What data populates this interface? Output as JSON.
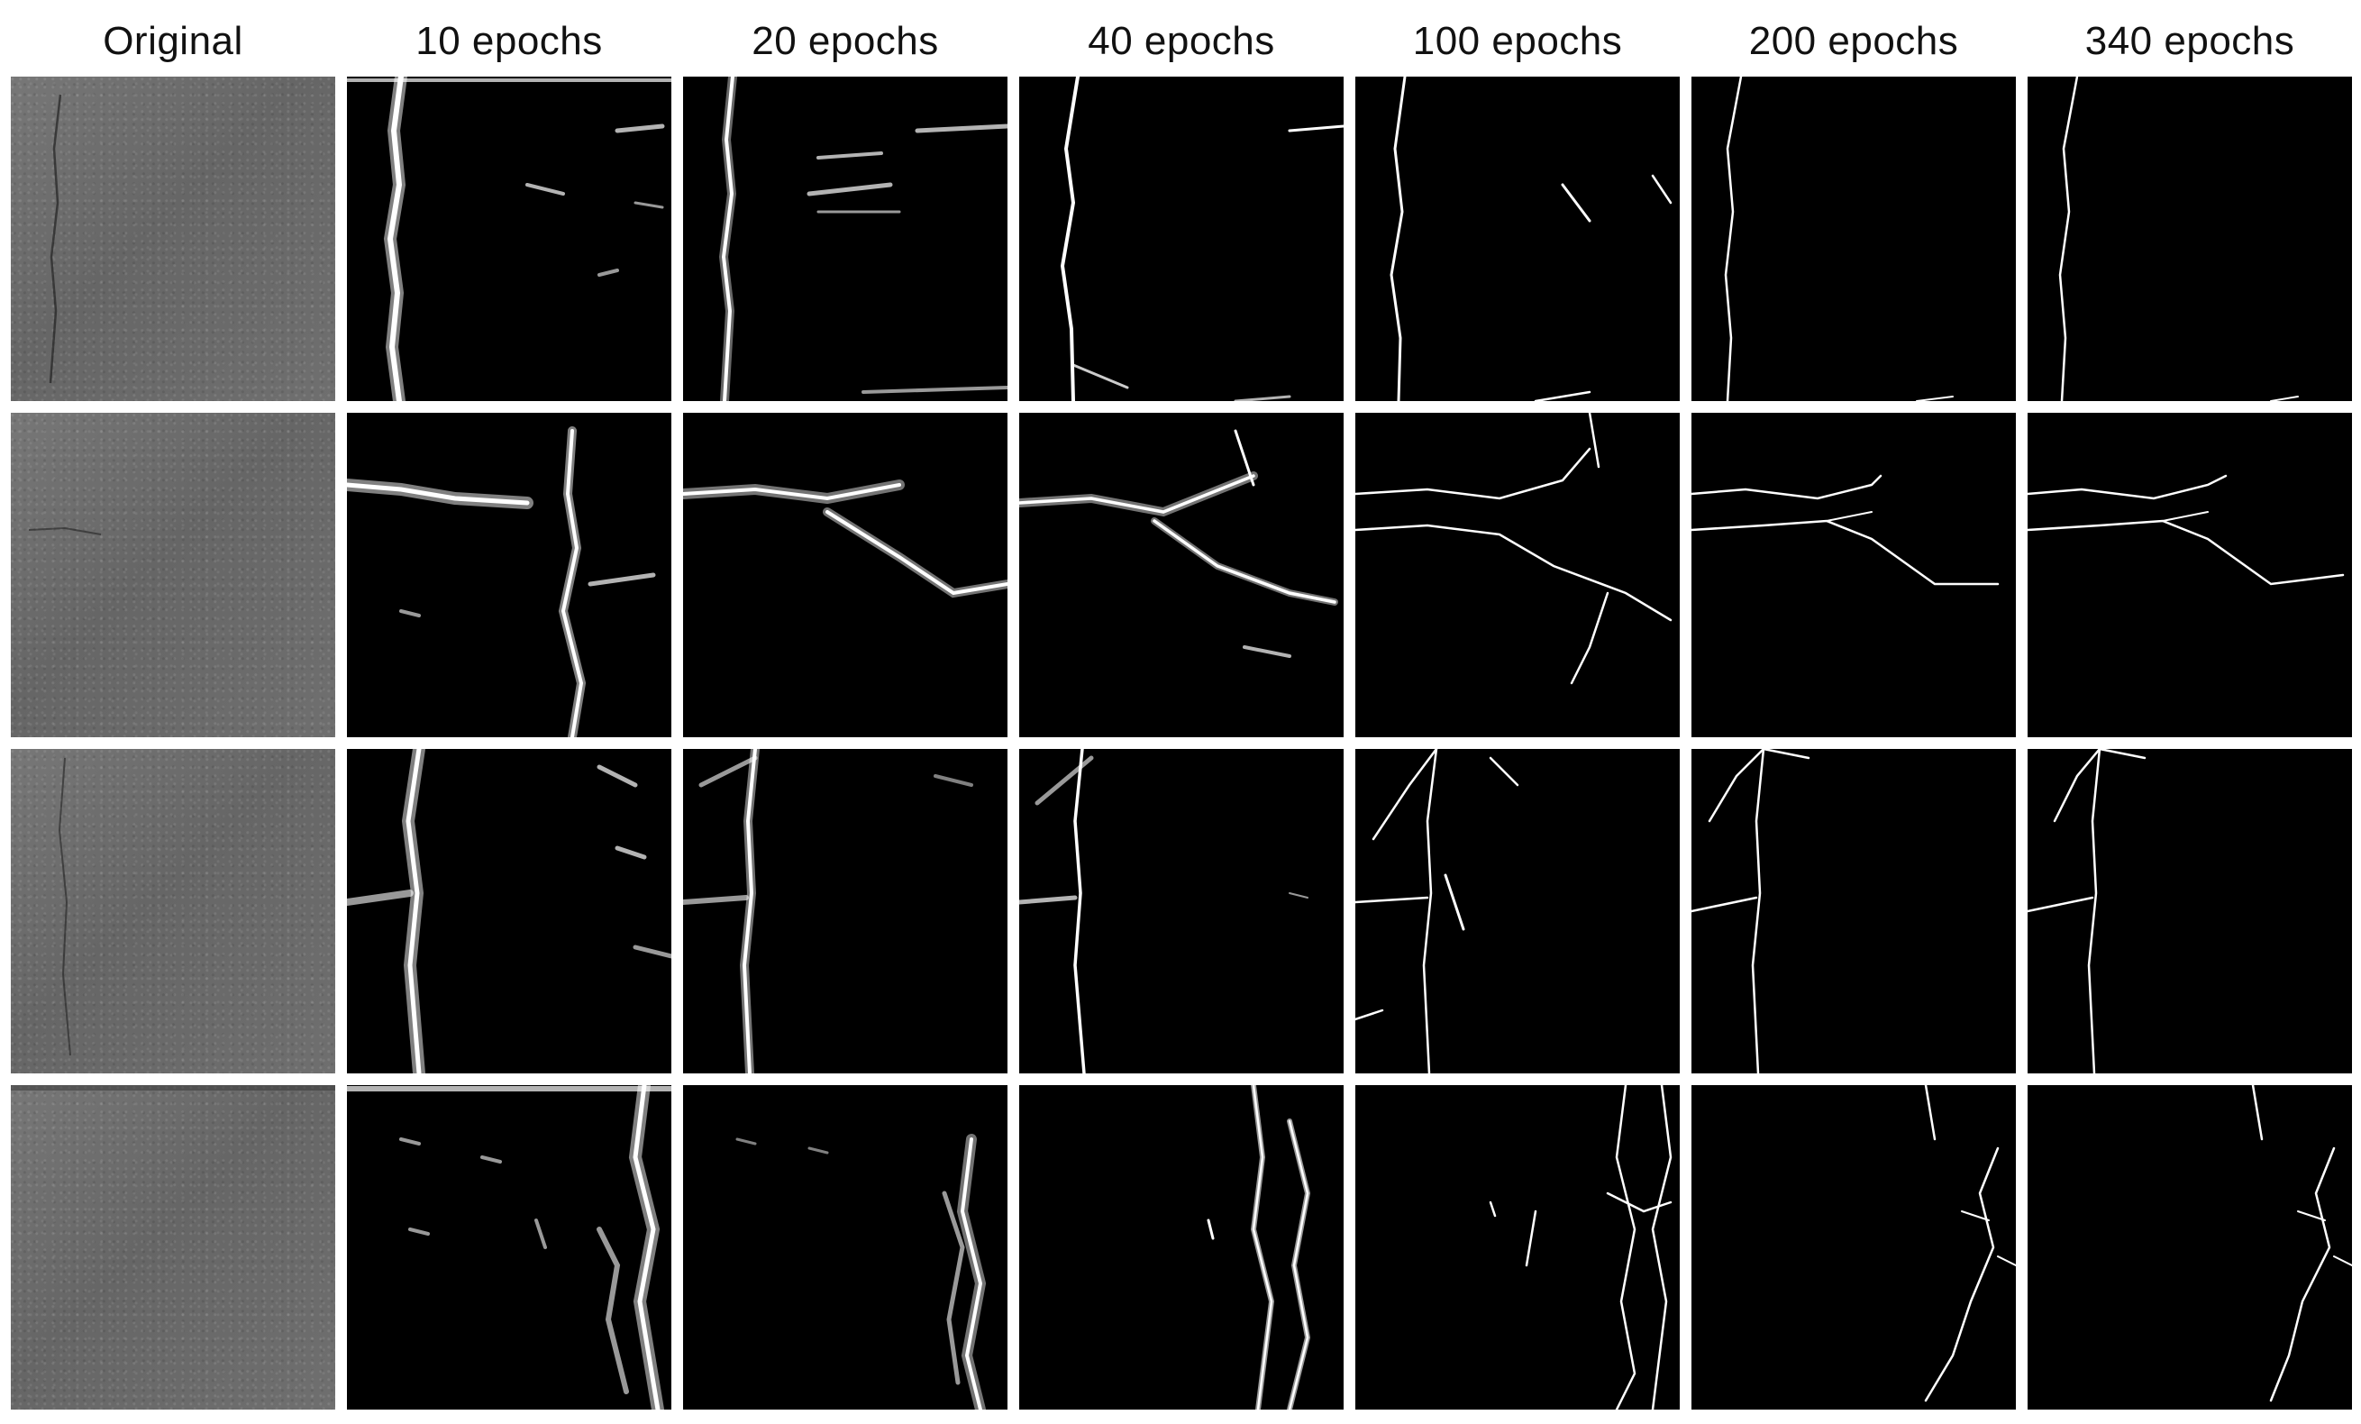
{
  "columns": [
    {
      "label": "Original"
    },
    {
      "label": "10 epochs"
    },
    {
      "label": "20 epochs"
    },
    {
      "label": "40 epochs"
    },
    {
      "label": "100 epochs"
    },
    {
      "label": "200 epochs"
    },
    {
      "label": "340 epochs"
    }
  ],
  "rows": 4
}
